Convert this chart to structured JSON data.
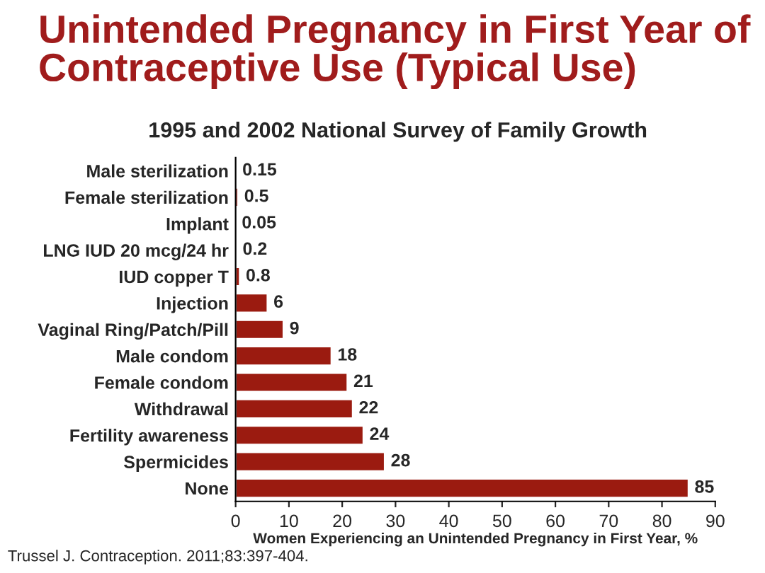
{
  "chart_data": {
    "type": "bar",
    "orientation": "horizontal",
    "title": "Unintended Pregnancy in First Year of Contraceptive Use (Typical Use)",
    "subtitle": "1995 and 2002 National Survey of Family Growth",
    "xlabel": "Women Experiencing an Unintended Pregnancy in First Year, %",
    "categories": [
      "Male sterilization",
      "Female sterilization",
      "Implant",
      "LNG IUD 20 mcg/24 hr",
      "IUD copper T",
      "Injection",
      "Vaginal Ring/Patch/Pill",
      "Male condom",
      "Female condom",
      "Withdrawal",
      "Fertility awareness",
      "Spermicides",
      "None"
    ],
    "values": [
      0.15,
      0.5,
      0.05,
      0.2,
      0.8,
      6,
      9,
      18,
      21,
      22,
      24,
      28,
      85
    ],
    "color": "#9b1b10",
    "data_labels": true,
    "xlim": [
      0,
      90
    ],
    "xticks": [
      0,
      10,
      20,
      30,
      40,
      50,
      60,
      70,
      80,
      90
    ],
    "grid": false,
    "legend": false,
    "annotations": [
      "Trussel J. Contraception. 2011;83:397-404."
    ]
  }
}
